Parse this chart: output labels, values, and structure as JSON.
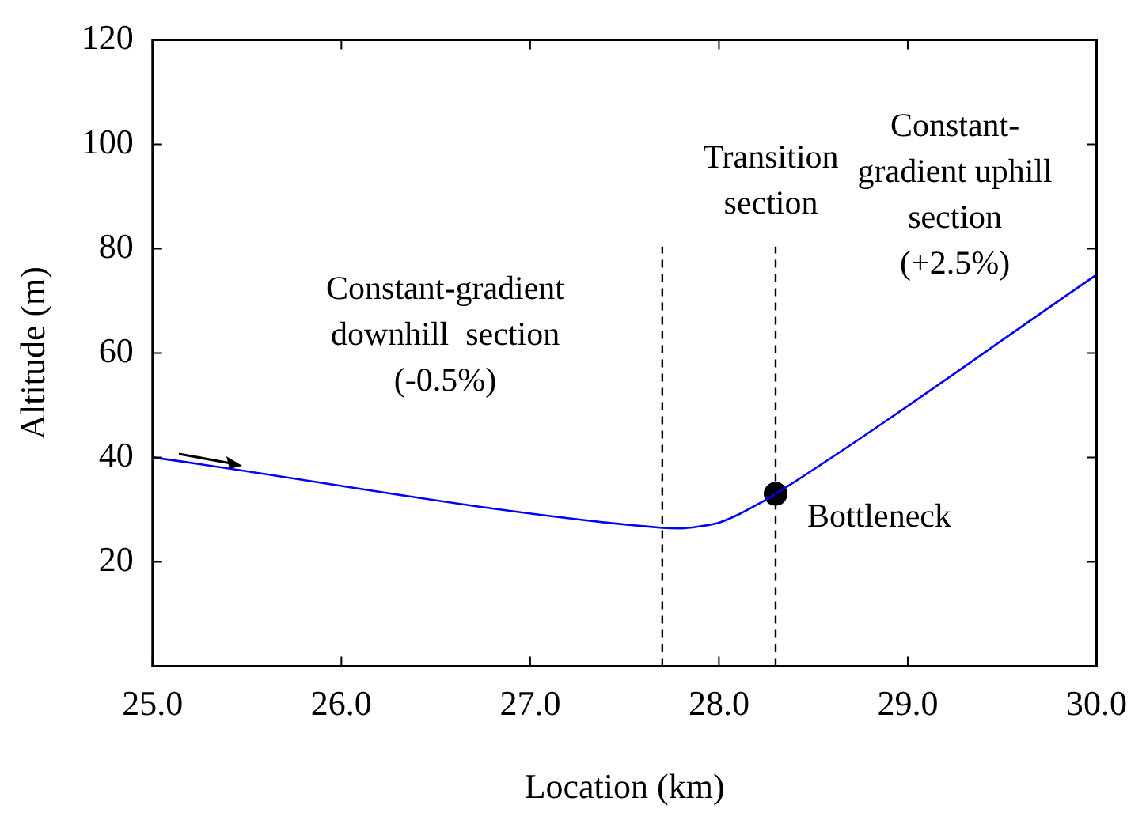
{
  "chart_data": {
    "type": "line",
    "xlabel": "Location (km)",
    "ylabel": "Altitude (m)",
    "xlim": [
      25,
      30
    ],
    "xticks": [
      {
        "value": 25,
        "label": "25.0"
      },
      {
        "value": 26,
        "label": "26.0"
      },
      {
        "value": 27,
        "label": "27.0"
      },
      {
        "value": 28,
        "label": "28.0"
      },
      {
        "value": 29,
        "label": "29.0"
      },
      {
        "value": 30,
        "label": "30.0"
      }
    ],
    "ylim": [
      0,
      120
    ],
    "yticks": [
      20,
      40,
      60,
      80,
      100,
      120
    ],
    "grid": false,
    "legend": false,
    "series": [
      {
        "color": "#0000ff",
        "marker": "none",
        "x": [
          25,
          27.7,
          27.8,
          27.9,
          28.0,
          28.1,
          28.2,
          28.3,
          30
        ],
        "values": [
          40,
          26.5,
          26.4,
          26.8,
          27.5,
          29.0,
          30.9,
          33,
          75
        ]
      },
      {
        "type": "scatter",
        "color": "#000000",
        "marker": "circle",
        "x": [
          28.3
        ],
        "values": [
          33
        ]
      }
    ],
    "ref_lines": [
      {
        "axis": "x",
        "value": 27.7,
        "color": "#000000",
        "line_style": "dashed"
      },
      {
        "axis": "x",
        "value": 28.3,
        "color": "#000000",
        "line_style": "dashed"
      }
    ],
    "annotations": [
      "Constant-gradient\ndownhill  section\n(-0.5%)",
      "Transition\nsection",
      "Constant-\ngradient uphill\nsection\n(+2.5%)",
      {
        "text": "Bottleneck",
        "x": 28.3,
        "y": 33
      }
    ]
  }
}
